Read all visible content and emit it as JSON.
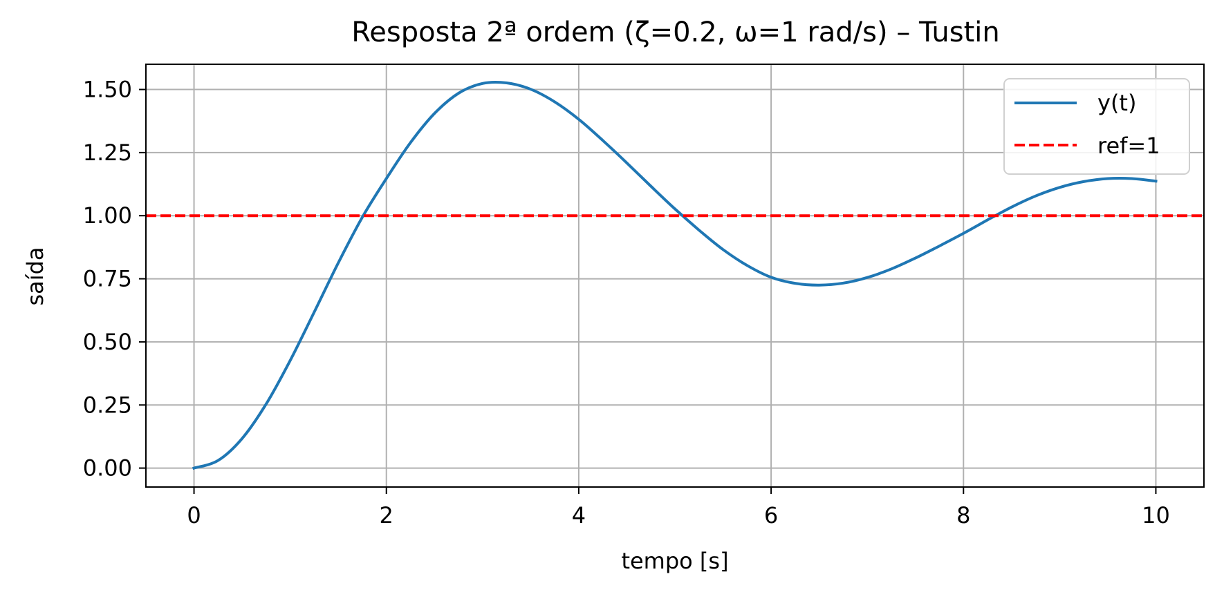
{
  "chart_data": {
    "type": "line",
    "title": "Resposta 2ª ordem (ζ=0.2, ω=1 rad/s) – Tustin",
    "xlabel": "tempo [s]",
    "ylabel": "saída",
    "xlim": [
      -0.5,
      10.5
    ],
    "ylim": [
      -0.075,
      1.6
    ],
    "x_ticks": [
      0,
      2,
      4,
      6,
      8,
      10
    ],
    "x_tick_labels": [
      "0",
      "2",
      "4",
      "6",
      "8",
      "10"
    ],
    "y_ticks": [
      0,
      0.25,
      0.5,
      0.75,
      1.0,
      1.25,
      1.5
    ],
    "y_tick_labels": [
      "0.00",
      "0.25",
      "0.50",
      "0.75",
      "1.00",
      "1.25",
      "1.50"
    ],
    "grid": true,
    "legend_position": "top-right",
    "series": [
      {
        "name": "y(t)",
        "style": "solid",
        "color": "#1f77b4",
        "x": [
          0,
          0.25,
          0.5,
          0.75,
          1.0,
          1.25,
          1.5,
          1.75,
          2.0,
          2.25,
          2.5,
          2.75,
          3.0,
          3.25,
          3.5,
          3.75,
          4.0,
          4.25,
          4.5,
          4.75,
          5.0,
          5.25,
          5.5,
          5.75,
          6.0,
          6.25,
          6.5,
          6.75,
          7.0,
          7.25,
          7.5,
          7.75,
          8.0,
          8.25,
          8.5,
          8.75,
          9.0,
          9.25,
          9.5,
          9.75,
          10.0
        ],
        "values": [
          0.0,
          0.03,
          0.117,
          0.254,
          0.426,
          0.618,
          0.813,
          0.994,
          1.147,
          1.289,
          1.405,
          1.485,
          1.524,
          1.526,
          1.501,
          1.451,
          1.382,
          1.298,
          1.209,
          1.117,
          1.027,
          0.943,
          0.866,
          0.803,
          0.756,
          0.732,
          0.725,
          0.733,
          0.755,
          0.789,
          0.832,
          0.88,
          0.93,
          0.983,
          1.034,
          1.078,
          1.112,
          1.135,
          1.147,
          1.147,
          1.137
        ]
      },
      {
        "name": "ref=1",
        "style": "dashed",
        "color": "#ff0000",
        "x": [
          -0.5,
          10.5
        ],
        "values": [
          1.0,
          1.0
        ]
      }
    ]
  }
}
